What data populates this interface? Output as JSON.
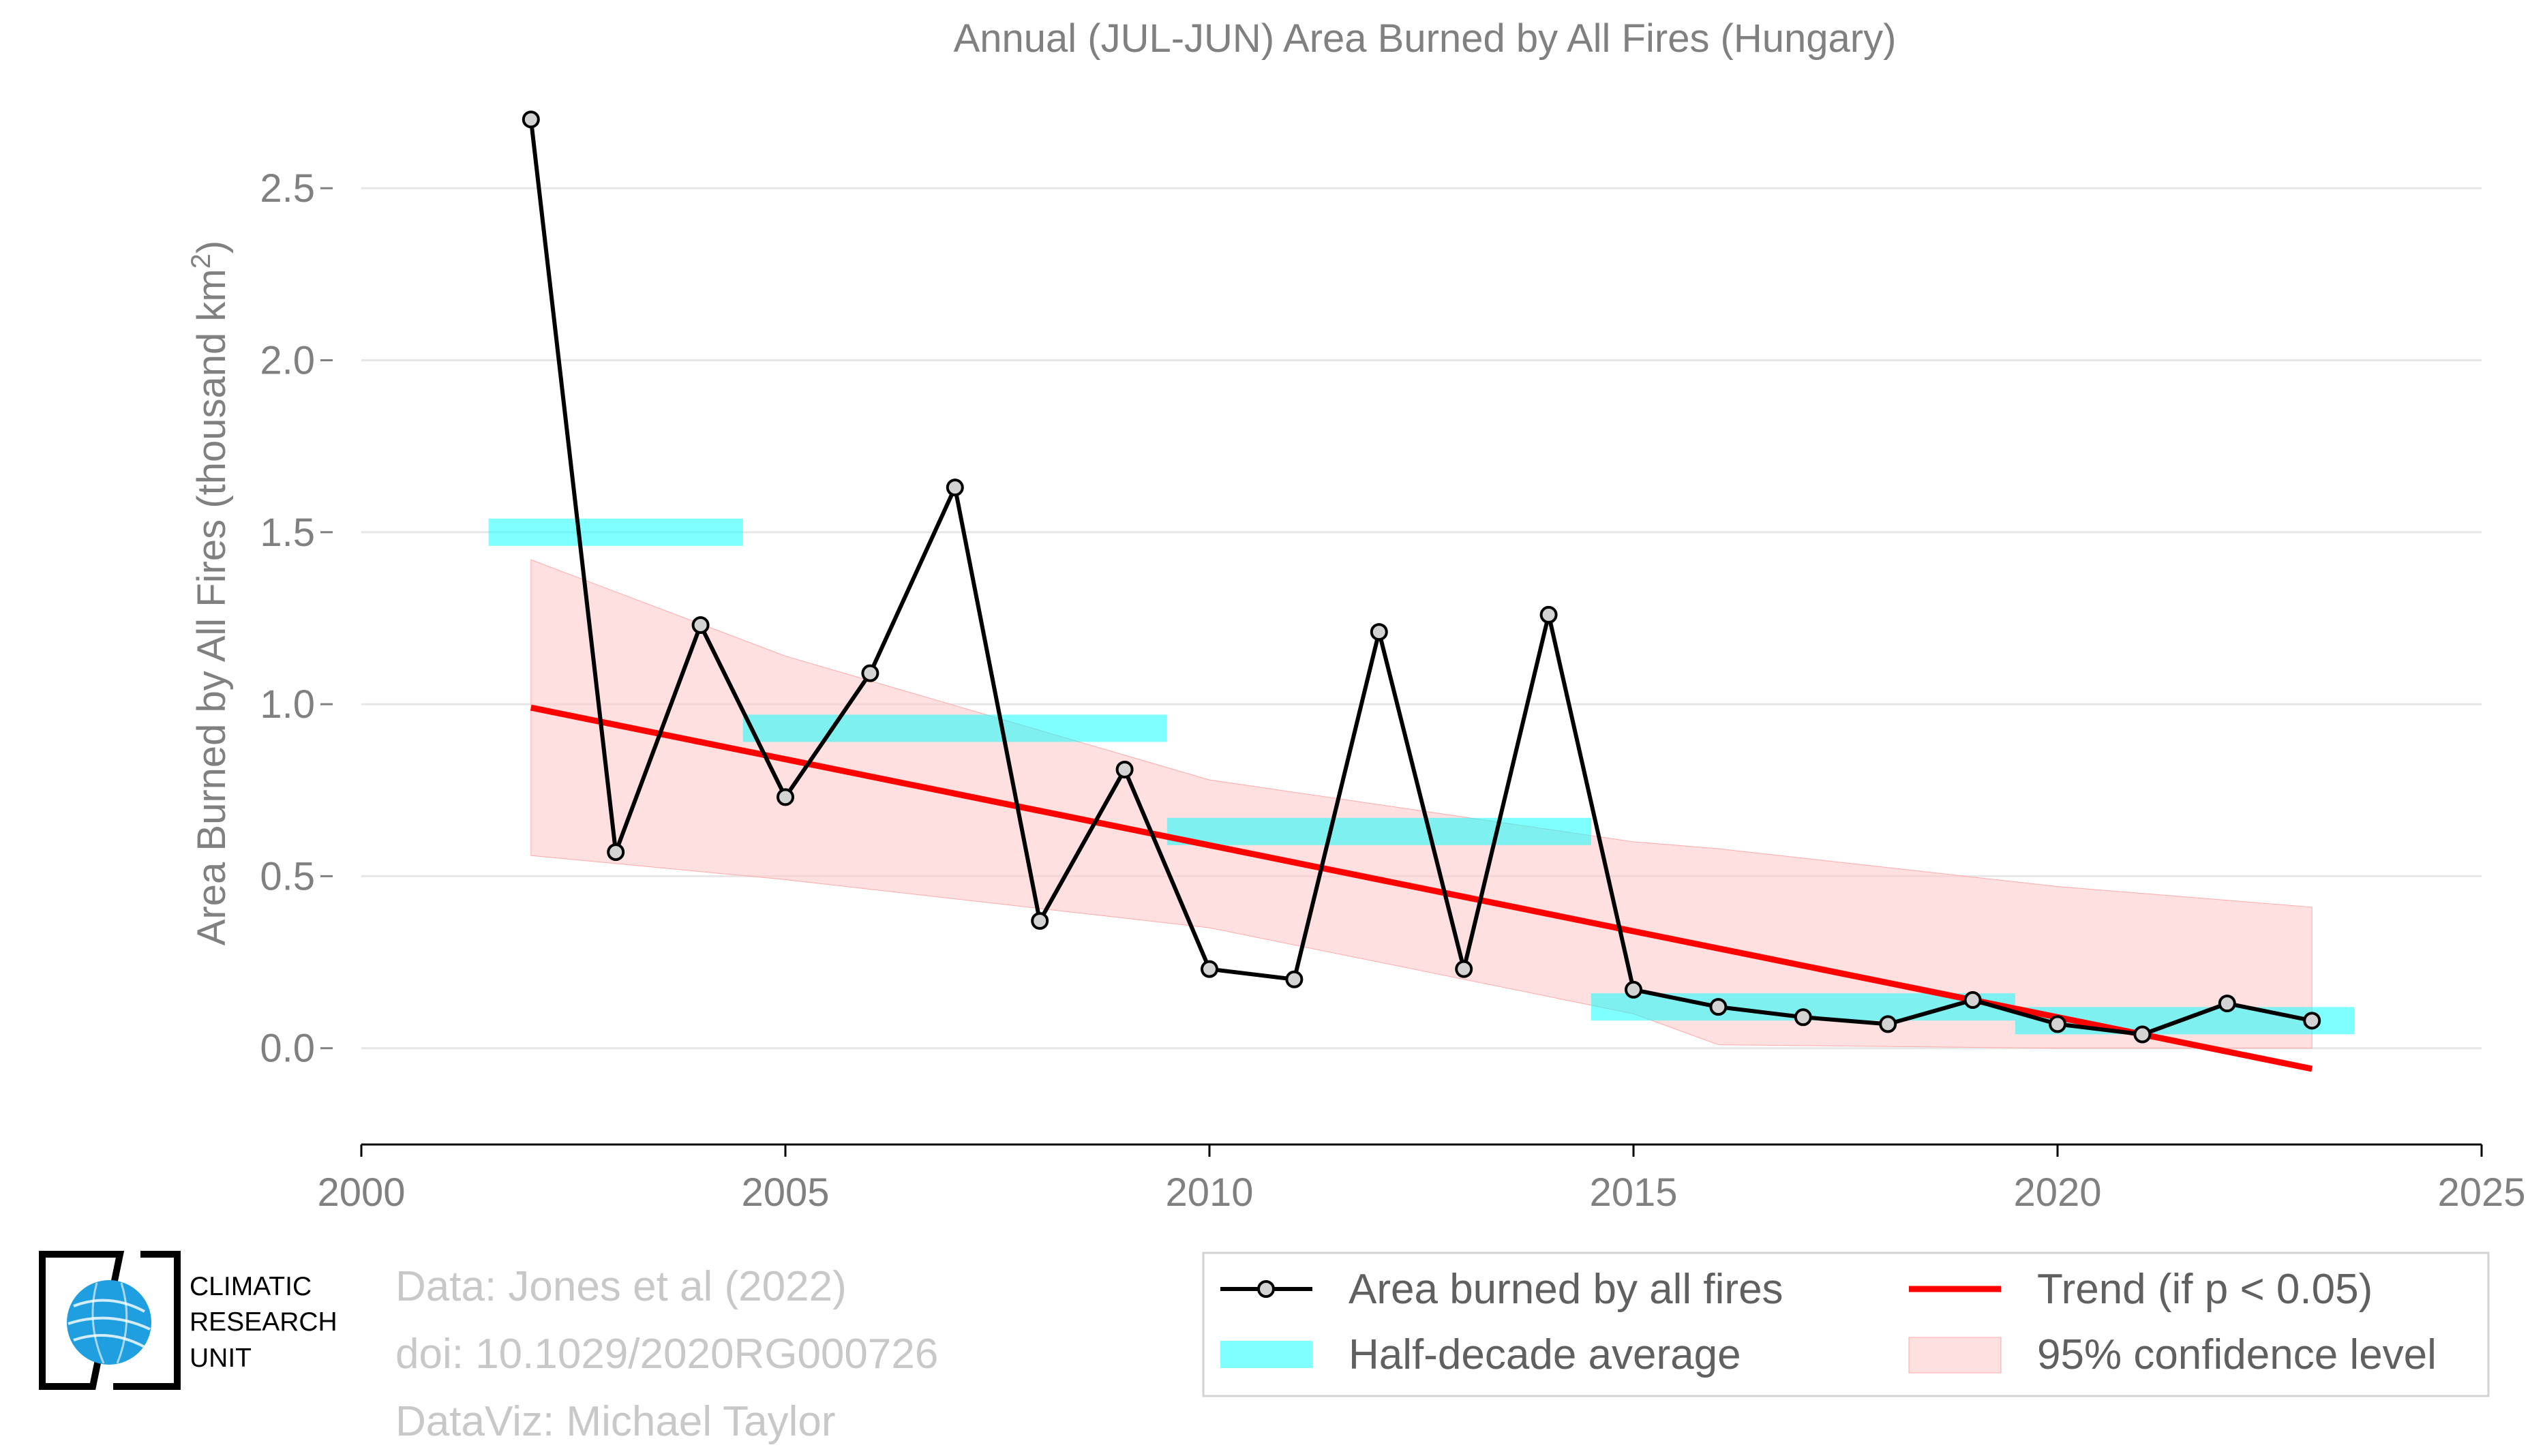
{
  "title": "Annual (JUL-JUN) Area Burned by All Fires (Hungary)",
  "credits": {
    "line1": "Data: Jones et al (2022)",
    "line2": "doi: 10.1029/2020RG000726",
    "line3": "DataViz: Michael Taylor"
  },
  "logo": {
    "line1": "CLIMATIC",
    "line2": "RESEARCH",
    "line3": "UNIT",
    "icon": "globe-icon"
  },
  "legend": {
    "series": "Area burned by all fires",
    "trend": "Trend (if p < 0.05)",
    "half_decade": "Half-decade average",
    "confidence": "95% confidence level"
  },
  "colors": {
    "series": "#000000",
    "marker_fill": "#d3d3d3",
    "trend": "#ff0000",
    "half_decade": "#00ffff",
    "confidence": "#ffcccc",
    "text": "#808080"
  },
  "chart_data": {
    "type": "line",
    "title": "Annual (JUL-JUN) Area Burned by All Fires (Hungary)",
    "ylabel_main": "Area Burned by All Fires (thousand km",
    "ylabel_sup": "2",
    "ylabel_end": ")",
    "xlim": [
      2000,
      2025
    ],
    "ylim": [
      -0.28,
      2.75
    ],
    "xticks": [
      2000,
      2005,
      2010,
      2015,
      2020,
      2025
    ],
    "yticks": [
      0.0,
      0.5,
      1.0,
      1.5,
      2.0,
      2.5
    ],
    "ytick_labels": [
      "0.0",
      "0.5",
      "1.0",
      "1.5",
      "2.0",
      "2.5"
    ],
    "grid": "horizontal",
    "legend_position": "bottom-right",
    "series": [
      {
        "name": "Area burned by all fires",
        "x": [
          2002,
          2003,
          2004,
          2005,
          2006,
          2007,
          2008,
          2009,
          2010,
          2011,
          2012,
          2013,
          2014,
          2015,
          2016,
          2017,
          2018,
          2019,
          2020,
          2021,
          2022,
          2023
        ],
        "y": [
          2.7,
          0.57,
          1.23,
          0.73,
          1.09,
          1.63,
          0.37,
          0.81,
          0.23,
          0.2,
          1.21,
          0.23,
          1.26,
          0.17,
          0.12,
          0.09,
          0.07,
          0.14,
          0.07,
          0.04,
          0.13,
          0.08
        ]
      }
    ],
    "half_decade_average": [
      {
        "x0": 2001.5,
        "x1": 2004.5,
        "y": 1.5
      },
      {
        "x0": 2004.5,
        "x1": 2009.5,
        "y": 0.93
      },
      {
        "x0": 2009.5,
        "x1": 2014.5,
        "y": 0.63
      },
      {
        "x0": 2014.5,
        "x1": 2019.5,
        "y": 0.12
      },
      {
        "x0": 2019.5,
        "x1": 2023.5,
        "y": 0.08
      }
    ],
    "trend": {
      "x": [
        2002,
        2023
      ],
      "y": [
        0.99,
        -0.06
      ]
    },
    "confidence_band": {
      "x": [
        2002,
        2005,
        2010,
        2015,
        2016,
        2020,
        2023
      ],
      "upper": [
        1.42,
        1.14,
        0.78,
        0.6,
        0.58,
        0.47,
        0.41
      ],
      "lower": [
        0.56,
        0.49,
        0.35,
        0.1,
        0.01,
        0.0,
        0.0
      ]
    }
  }
}
